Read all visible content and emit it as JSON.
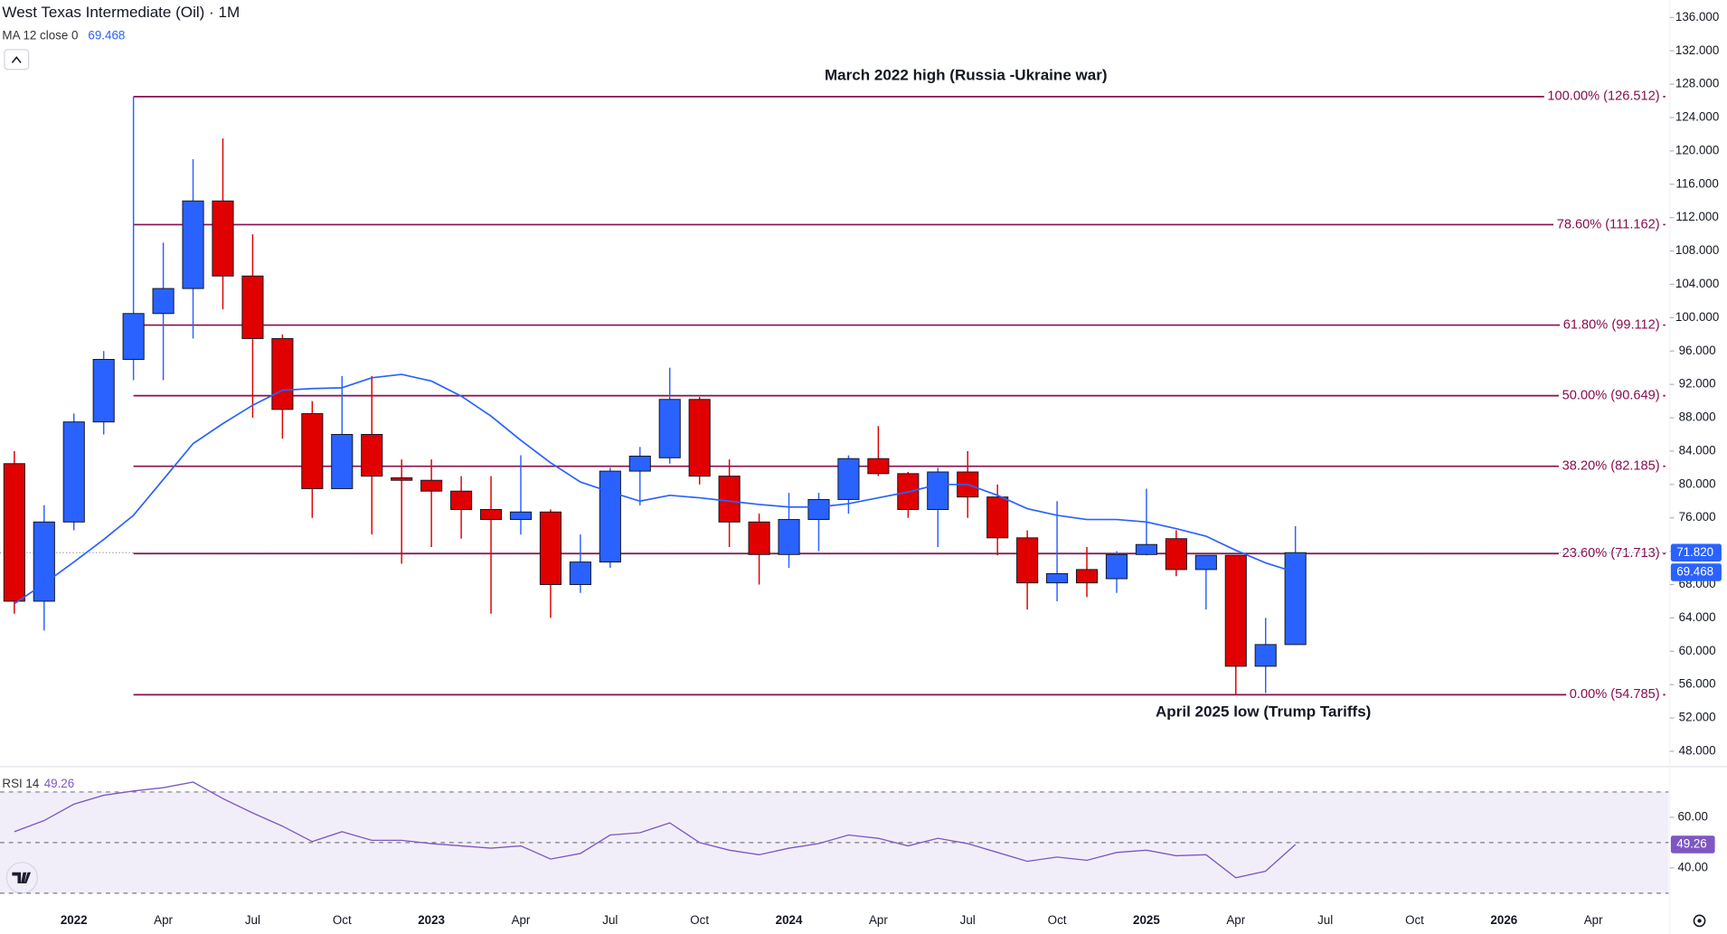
{
  "chart_data": [
    {
      "type": "candlestick",
      "title": "West Texas Intermediate (Oil) · 1M",
      "indicator": {
        "name": "MA 12 close 0",
        "value": 69.468
      },
      "categories": [
        null,
        null,
        "2022",
        null,
        null,
        "Apr",
        null,
        null,
        "Jul",
        null,
        null,
        "Oct",
        null,
        null,
        "2023",
        null,
        null,
        "Apr",
        null,
        null,
        "Jul",
        null,
        null,
        "Oct",
        null,
        null,
        "2024",
        null,
        null,
        "Apr",
        null,
        null,
        "Jul",
        null,
        null,
        "Oct",
        null,
        null,
        "2025",
        null,
        null,
        "Apr",
        null,
        null,
        "Jul",
        null,
        null,
        "Oct",
        null,
        null,
        "2026",
        null,
        null,
        "Apr"
      ],
      "open": [
        82.5,
        66,
        75.5,
        87.5,
        95,
        100.5,
        103.5,
        114,
        105,
        97.5,
        88.5,
        79.5,
        86,
        80.8,
        80.5,
        79.2,
        77,
        75.8,
        76.7,
        68,
        70.7,
        81.6,
        83.2,
        90.2,
        81,
        75.5,
        71.6,
        75.8,
        78.2,
        83.1,
        81.3,
        77,
        81.5,
        78.5,
        73.6,
        68.2,
        69.8,
        68.7,
        71.6,
        73.5,
        69.8,
        71.5,
        58.2,
        60.8,
        null,
        null,
        null,
        null,
        null,
        null,
        null,
        null,
        null,
        null
      ],
      "high": [
        84,
        77.5,
        88.5,
        96,
        126.512,
        109,
        119,
        121.5,
        110,
        98,
        90,
        93,
        93,
        83,
        83,
        81,
        81,
        83.5,
        77,
        74,
        82,
        84.5,
        94,
        90.5,
        83,
        76.5,
        79,
        79,
        83.5,
        87,
        81.5,
        82,
        84,
        80,
        74.5,
        78,
        72.5,
        72,
        79.5,
        74.5,
        71.5,
        71.5,
        64,
        75,
        null,
        null,
        null,
        null,
        null,
        null,
        null,
        null,
        null,
        null
      ],
      "low": [
        64.5,
        62.5,
        74.5,
        86,
        92.5,
        92.5,
        97.5,
        101,
        88,
        85.5,
        76,
        79.5,
        74,
        70.5,
        72.5,
        73.5,
        64.5,
        74,
        64,
        67,
        70,
        77.5,
        82.5,
        80,
        72.5,
        68,
        70,
        72,
        76.5,
        81,
        76,
        72.5,
        76,
        71.5,
        65,
        66,
        66.5,
        67,
        71.5,
        69,
        65,
        54.785,
        55,
        61,
        null,
        null,
        null,
        null,
        null,
        null,
        null,
        null,
        null,
        null
      ],
      "close": [
        66,
        75.5,
        87.5,
        95,
        100.5,
        103.5,
        114,
        105,
        97.5,
        89,
        79.5,
        86,
        81,
        80.5,
        79.2,
        77,
        75.8,
        76.7,
        68,
        70.7,
        81.6,
        83.4,
        90.2,
        81,
        75.5,
        71.6,
        75.8,
        78.2,
        83.1,
        81.3,
        77,
        81.5,
        78.5,
        73.6,
        68.2,
        69.3,
        68.2,
        71.6,
        72.8,
        69.8,
        71.5,
        58.2,
        60.8,
        71.82,
        null,
        null,
        null,
        null,
        null,
        null,
        null,
        null,
        null,
        null
      ],
      "up_color": "#2962ff",
      "down_color": "#e00000",
      "ma": {
        "color": "#2962ff",
        "values": [
          65.7,
          68.1,
          70.7,
          73.4,
          76.3,
          80.6,
          84.9,
          87.3,
          89.5,
          91.3,
          91.5,
          91.6,
          92.8,
          93.2,
          92.4,
          90.6,
          88.2,
          85.3,
          82.6,
          80.3,
          79.1,
          78.0,
          78.7,
          78.4,
          78.0,
          77.6,
          77.3,
          77.3,
          77.7,
          78.4,
          79.1,
          80.0,
          80.0,
          78.7,
          77.1,
          76.3,
          75.8,
          75.8,
          75.5,
          74.7,
          73.8,
          72.1,
          70.6,
          69.468,
          null,
          null,
          null,
          null,
          null,
          null,
          null,
          null,
          null,
          null
        ]
      },
      "ylim": [
        46.3,
        138.1
      ],
      "yticks": [
        {
          "value": 48,
          "label": "48.000"
        },
        {
          "value": 52,
          "label": "52.000"
        },
        {
          "value": 56,
          "label": "56.000"
        },
        {
          "value": 60,
          "label": "60.000"
        },
        {
          "value": 64,
          "label": "64.000"
        },
        {
          "value": 68,
          "label": "68.000"
        },
        {
          "value": 72,
          "label": "72.000"
        },
        {
          "value": 76,
          "label": "76.000"
        },
        {
          "value": 80,
          "label": "80.000"
        },
        {
          "value": 84,
          "label": "84.000"
        },
        {
          "value": 88,
          "label": "88.000"
        },
        {
          "value": 92,
          "label": "92.000"
        },
        {
          "value": 96,
          "label": "96.000"
        },
        {
          "value": 100,
          "label": "100.000"
        },
        {
          "value": 104,
          "label": "104.000"
        },
        {
          "value": 108,
          "label": "108.000"
        },
        {
          "value": 112,
          "label": "112.000"
        },
        {
          "value": 116,
          "label": "116.000"
        },
        {
          "value": 120,
          "label": "120.000"
        },
        {
          "value": 124,
          "label": "124.000"
        },
        {
          "value": 128,
          "label": "128.000"
        },
        {
          "value": 132,
          "label": "132.000"
        },
        {
          "value": 136,
          "label": "136.000"
        }
      ],
      "levels": [
        {
          "value": 126.512,
          "label": "100.00% (126.512)"
        },
        {
          "value": 111.162,
          "label": "78.60% (111.162)"
        },
        {
          "value": 99.112,
          "label": "61.80% (99.112)"
        },
        {
          "value": 90.649,
          "label": "50.00% (90.649)"
        },
        {
          "value": 82.185,
          "label": "38.20% (82.185)"
        },
        {
          "value": 71.713,
          "label": "23.60% (71.713)"
        },
        {
          "value": 54.785,
          "label": "0.00% (54.785)"
        }
      ],
      "level_color": "#880e4f",
      "annotations": [
        "March 2022 high (Russia -Ukraine war)",
        "April 2025 low (Trump Tariffs)"
      ],
      "last_price": {
        "value": 71.82,
        "label": "71.820"
      }
    },
    {
      "type": "line",
      "title": "RSI 14",
      "value": 49.26,
      "color": "#7e57c2",
      "values": [
        54.3,
        58.7,
        65.2,
        68.7,
        70.4,
        71.7,
        73.9,
        67.4,
        61.7,
        56.5,
        50.4,
        54.3,
        50.9,
        50.9,
        49.6,
        48.7,
        47.8,
        48.7,
        43.5,
        45.7,
        53,
        53.9,
        57.8,
        50,
        47,
        45.2,
        47.8,
        49.6,
        53,
        51.7,
        48.7,
        51.7,
        49.6,
        46.1,
        42.6,
        44.3,
        43,
        46.1,
        47,
        44.8,
        45.2,
        36.1,
        38.7,
        49.26,
        null,
        null,
        null,
        null,
        null,
        null,
        null,
        null,
        null,
        null
      ],
      "ylim": [
        25.2,
        79.6
      ],
      "yticks": [
        {
          "value": 40,
          "label": "40.00"
        },
        {
          "value": 60,
          "label": "60.00"
        }
      ],
      "levels": [
        70,
        50,
        30
      ]
    }
  ]
}
